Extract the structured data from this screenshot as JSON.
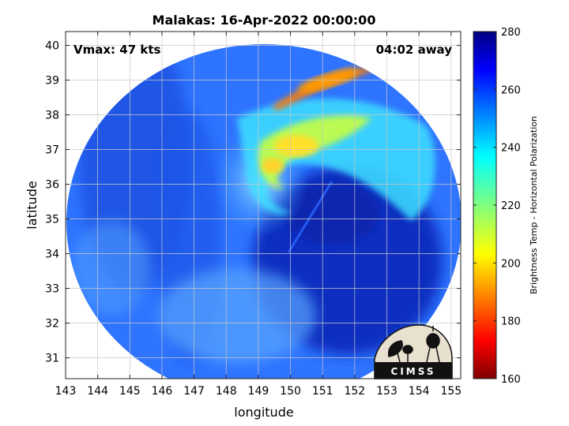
{
  "title": "Malakas: 16-Apr-2022 00:00:00",
  "vmax_label": "Vmax: 47 kts",
  "time_away_label": "04:02 away",
  "xlabel": "longitude",
  "ylabel": "latitude",
  "colorbar": {
    "label": "Brightness Temp - Horizontal Polarization",
    "ticks": [
      "280",
      "260",
      "240",
      "220",
      "200",
      "180",
      "160"
    ],
    "range": [
      160,
      280
    ],
    "colormap": "jet"
  },
  "logo_text": "CIMSS",
  "x_ticks": [
    "143",
    "144",
    "145",
    "146",
    "147",
    "148",
    "149",
    "150",
    "151",
    "152",
    "153",
    "154",
    "155"
  ],
  "y_ticks": [
    "40",
    "39",
    "38",
    "37",
    "36",
    "35",
    "34",
    "33",
    "32",
    "31"
  ],
  "map": {
    "lon_range": [
      143,
      155.3
    ],
    "lat_range": [
      30.4,
      40.4
    ],
    "grid": true,
    "swath": "circular microwave swath centered near 149.5E, 35.5N"
  },
  "colors": {
    "background_blue": "#1f5fe0",
    "cold_band": "#ff7a00",
    "frame": "#000000"
  }
}
